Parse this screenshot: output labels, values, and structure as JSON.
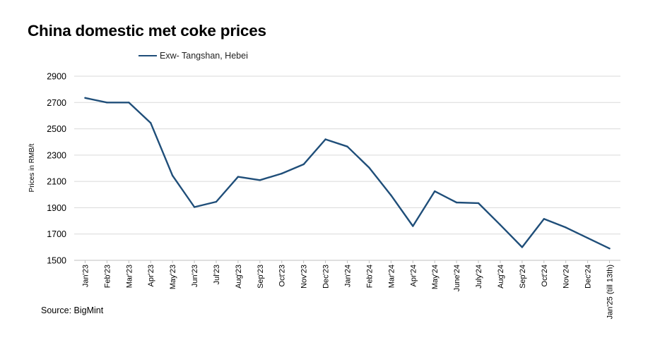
{
  "chart_data": {
    "type": "line",
    "title": "China domestic met coke prices",
    "ylabel": "Prices in RMB/t",
    "xlabel": "",
    "ylim": [
      1500,
      2900
    ],
    "yticks": [
      1500,
      1700,
      1900,
      2100,
      2300,
      2500,
      2700,
      2900
    ],
    "grid": true,
    "legend_position": "top-left",
    "categories": [
      "Jan'23",
      "Feb'23",
      "Mar'23",
      "Apr'23",
      "May'23",
      "Jun'23",
      "Jul'23",
      "Aug'23",
      "Sep'23",
      "Oct'23",
      "Nov'23",
      "Dec'23",
      "Jan'24",
      "Feb'24",
      "Mar'24",
      "Apr'24",
      "May'24",
      "June'24",
      "July'24",
      "Aug'24",
      "Sep'24",
      "Oct'24",
      "Nov'24",
      "Dec'24",
      "Jan'25 (till 13th)"
    ],
    "series": [
      {
        "name": "Exw- Tangshan, Hebei",
        "color": "#1f4e79",
        "values": [
          2735,
          2700,
          2700,
          2545,
          2145,
          1905,
          1945,
          2135,
          2110,
          2160,
          2230,
          2420,
          2365,
          2205,
          1995,
          1760,
          2025,
          1940,
          1935,
          1770,
          1600,
          1815,
          1750,
          1670,
          1590
        ]
      }
    ]
  },
  "source": "Source: BigMint"
}
